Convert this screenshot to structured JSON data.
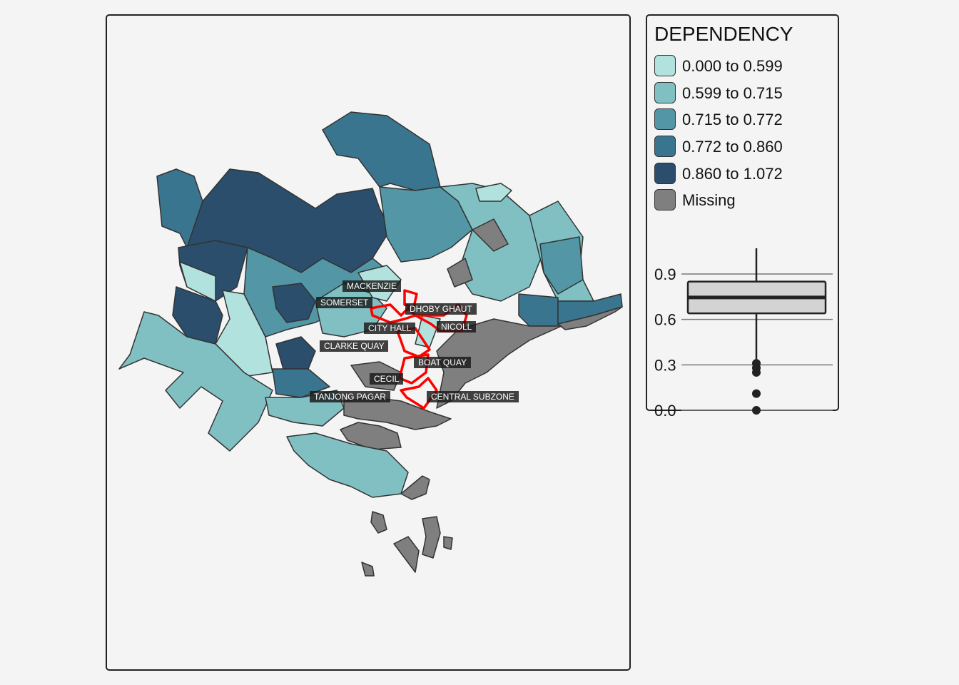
{
  "legend": {
    "title": "DEPENDENCY",
    "classes": [
      {
        "label": "0.000 to 0.599",
        "color": "#b2e2dd"
      },
      {
        "label": "0.599 to 0.715",
        "color": "#80c0c3"
      },
      {
        "label": "0.715 to 0.772",
        "color": "#5397a6"
      },
      {
        "label": "0.772 to 0.860",
        "color": "#3a7590"
      },
      {
        "label": "0.860 to 1.072",
        "color": "#2a4e6c"
      },
      {
        "label": "Missing",
        "color": "#7f7f7f"
      }
    ]
  },
  "boxplot": {
    "ticks": [
      "0.9",
      "0.6",
      "0.3",
      "0.0"
    ],
    "tick_values": [
      0.9,
      0.6,
      0.3,
      0.0
    ],
    "q1": 0.64,
    "median": 0.745,
    "q3": 0.85,
    "whisker_low": 0.33,
    "whisker_high": 1.07,
    "outliers": [
      0.31,
      0.28,
      0.25,
      0.11,
      0.0
    ]
  },
  "highlight_color": "#ff0000",
  "area_labels": [
    "MACKENZIE",
    "SOMERSET",
    "DHOBY GHAUT",
    "CITY HALL",
    "NICOLL",
    "CLARKE QUAY",
    "BOAT QUAY",
    "CECIL",
    "TANJONG PAGAR",
    "CENTRAL SUBZONE"
  ]
}
